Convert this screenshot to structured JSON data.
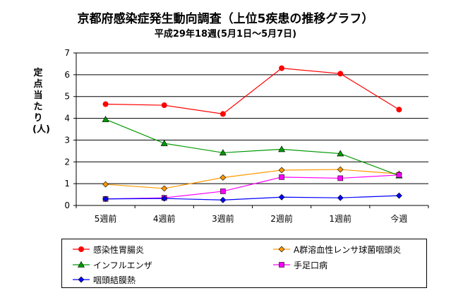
{
  "chart_data": {
    "type": "line",
    "title": "京都府感染症発生動向調査（上位5疾患の推移グラフ）",
    "subtitle": "平成29年18週(5月1日～5月7日)",
    "xlabel": "",
    "ylabel": "定点当たり(人)",
    "ylim": [
      0,
      7
    ],
    "yticks": [
      0,
      1,
      2,
      3,
      4,
      5,
      6,
      7
    ],
    "grid": true,
    "legend_position": "bottom",
    "categories": [
      "5週前",
      "4週前",
      "3週前",
      "2週前",
      "1週前",
      "今週"
    ],
    "series": [
      {
        "name": "感染性胃腸炎",
        "color": "#ff0000",
        "marker": "circle",
        "values": [
          4.65,
          4.6,
          4.2,
          6.3,
          6.05,
          4.4
        ]
      },
      {
        "name": "A群溶血性レンサ球菌咽頭炎",
        "color": "#ff9900",
        "marker": "diamond",
        "values": [
          0.97,
          0.78,
          1.28,
          1.62,
          1.65,
          1.45
        ]
      },
      {
        "name": "インフルエンザ",
        "color": "#009900",
        "marker": "triangle",
        "values": [
          3.95,
          2.85,
          2.42,
          2.58,
          2.38,
          1.37
        ]
      },
      {
        "name": "手足口病",
        "color": "#ff00ff",
        "marker": "square",
        "values": [
          0.3,
          0.35,
          0.65,
          1.3,
          1.25,
          1.4
        ]
      },
      {
        "name": "咽頭結膜熱",
        "color": "#0000ff",
        "marker": "diamond",
        "values": [
          0.3,
          0.32,
          0.25,
          0.38,
          0.35,
          0.45
        ]
      }
    ]
  }
}
